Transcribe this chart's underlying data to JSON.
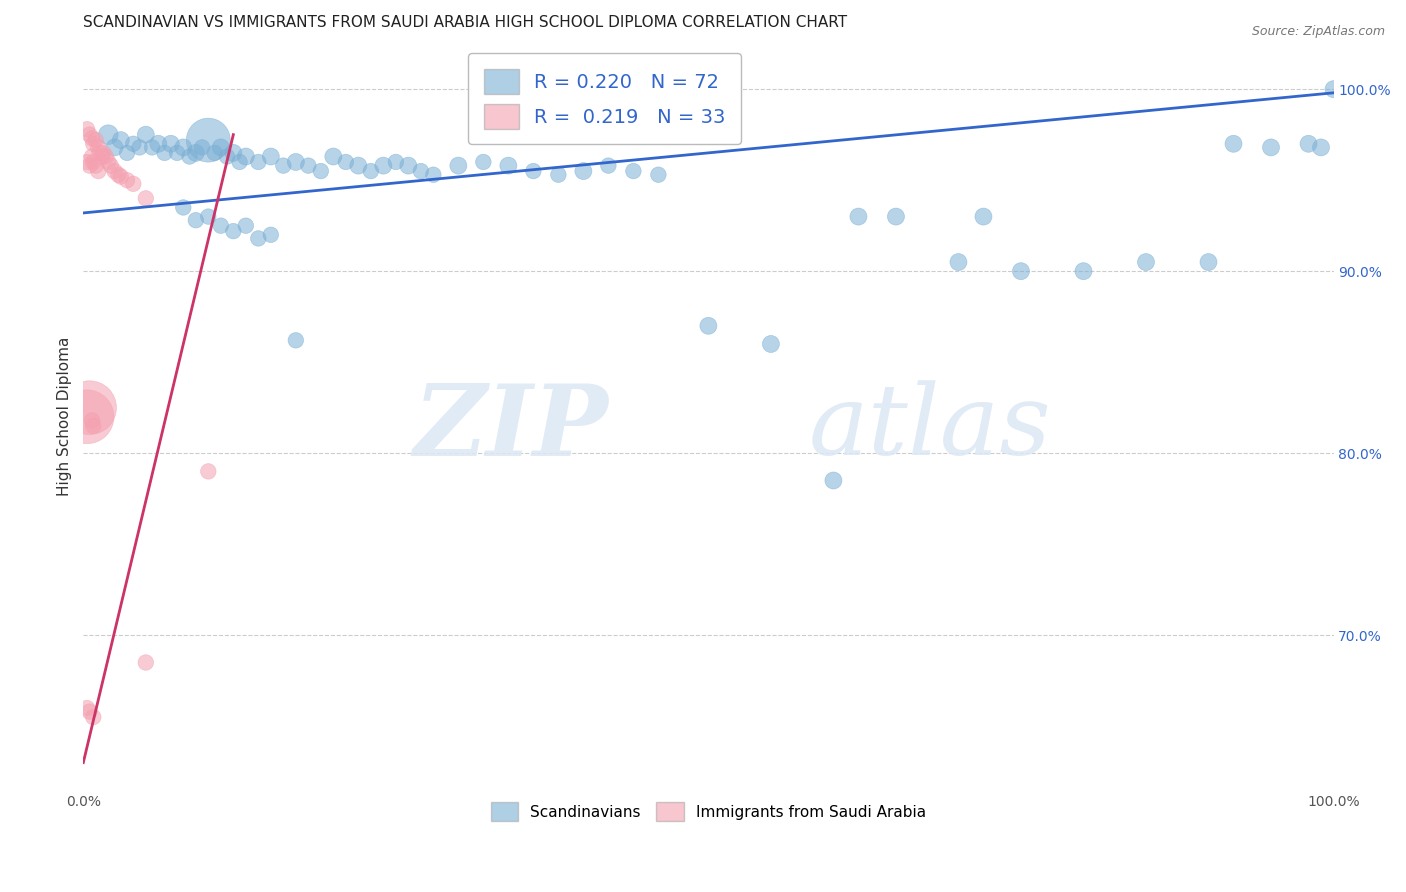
{
  "title": "SCANDINAVIAN VS IMMIGRANTS FROM SAUDI ARABIA HIGH SCHOOL DIPLOMA CORRELATION CHART",
  "source": "Source: ZipAtlas.com",
  "ylabel": "High School Diploma",
  "x_min": 0.0,
  "x_max": 1.0,
  "y_min": 0.615,
  "y_max": 1.025,
  "y_ticks": [
    0.7,
    0.8,
    0.9,
    1.0
  ],
  "y_tick_labels": [
    "70.0%",
    "80.0%",
    "90.0%",
    "100.0%"
  ],
  "x_ticks": [
    0.0,
    1.0
  ],
  "x_tick_labels": [
    "0.0%",
    "100.0%"
  ],
  "grid_color": "#cccccc",
  "background_color": "#ffffff",
  "scandinavian_color": "#7bafd4",
  "saudi_color": "#f4a0b0",
  "trend_blue": "#3366cc",
  "trend_pink": "#cc3366",
  "legend_R_blue": "0.220",
  "legend_N_blue": "72",
  "legend_R_pink": "0.219",
  "legend_N_pink": "33",
  "watermark_zip": "ZIP",
  "watermark_atlas": "atlas",
  "sc_x": [
    0.02,
    0.025,
    0.03,
    0.035,
    0.04,
    0.045,
    0.05,
    0.055,
    0.06,
    0.065,
    0.07,
    0.075,
    0.08,
    0.085,
    0.09,
    0.095,
    0.1,
    0.105,
    0.11,
    0.115,
    0.12,
    0.125,
    0.13,
    0.14,
    0.15,
    0.16,
    0.17,
    0.18,
    0.19,
    0.2,
    0.21,
    0.22,
    0.23,
    0.24,
    0.25,
    0.26,
    0.27,
    0.28,
    0.3,
    0.32,
    0.34,
    0.36,
    0.38,
    0.4,
    0.42,
    0.44,
    0.46,
    0.5,
    0.55,
    0.6,
    0.62,
    0.65,
    0.7,
    0.72,
    0.75,
    0.8,
    0.85,
    0.9,
    0.92,
    0.95,
    0.98,
    0.99,
    1.0,
    0.08,
    0.09,
    0.1,
    0.11,
    0.12,
    0.13,
    0.14,
    0.15,
    0.17
  ],
  "sc_y": [
    0.975,
    0.968,
    0.972,
    0.965,
    0.97,
    0.968,
    0.975,
    0.968,
    0.97,
    0.965,
    0.97,
    0.965,
    0.968,
    0.963,
    0.965,
    0.968,
    0.972,
    0.965,
    0.968,
    0.963,
    0.965,
    0.96,
    0.963,
    0.96,
    0.963,
    0.958,
    0.96,
    0.958,
    0.955,
    0.963,
    0.96,
    0.958,
    0.955,
    0.958,
    0.96,
    0.958,
    0.955,
    0.953,
    0.958,
    0.96,
    0.958,
    0.955,
    0.953,
    0.955,
    0.958,
    0.955,
    0.953,
    0.87,
    0.86,
    0.785,
    0.93,
    0.93,
    0.905,
    0.93,
    0.9,
    0.9,
    0.905,
    0.905,
    0.97,
    0.968,
    0.97,
    0.968,
    1.0,
    0.935,
    0.928,
    0.93,
    0.925,
    0.922,
    0.925,
    0.918,
    0.92,
    0.862
  ],
  "sc_s": [
    80,
    60,
    60,
    50,
    50,
    50,
    60,
    50,
    60,
    50,
    60,
    50,
    60,
    50,
    60,
    50,
    400,
    50,
    60,
    50,
    60,
    50,
    60,
    50,
    60,
    50,
    60,
    50,
    50,
    60,
    50,
    60,
    50,
    60,
    50,
    60,
    50,
    50,
    60,
    50,
    60,
    50,
    50,
    60,
    50,
    50,
    50,
    60,
    60,
    60,
    60,
    60,
    60,
    60,
    60,
    60,
    60,
    60,
    60,
    60,
    60,
    60,
    60,
    50,
    50,
    50,
    50,
    50,
    50,
    50,
    50,
    50
  ],
  "sa_x": [
    0.003,
    0.005,
    0.007,
    0.008,
    0.01,
    0.012,
    0.013,
    0.015,
    0.016,
    0.018,
    0.02,
    0.022,
    0.025,
    0.028,
    0.03,
    0.035,
    0.04,
    0.05,
    0.003,
    0.005,
    0.007,
    0.008,
    0.003,
    0.005,
    0.008,
    0.05,
    0.1,
    0.003,
    0.005,
    0.007,
    0.008,
    0.01,
    0.012
  ],
  "sa_y": [
    0.978,
    0.975,
    0.973,
    0.97,
    0.972,
    0.968,
    0.965,
    0.963,
    0.965,
    0.963,
    0.96,
    0.958,
    0.955,
    0.953,
    0.952,
    0.95,
    0.948,
    0.94,
    0.82,
    0.825,
    0.818,
    0.815,
    0.66,
    0.658,
    0.655,
    0.685,
    0.79,
    0.96,
    0.958,
    0.963,
    0.96,
    0.958,
    0.955
  ],
  "sa_s": [
    50,
    50,
    50,
    50,
    50,
    50,
    50,
    50,
    50,
    50,
    50,
    50,
    50,
    50,
    50,
    50,
    50,
    50,
    600,
    600,
    50,
    50,
    50,
    50,
    50,
    50,
    50,
    50,
    50,
    50,
    50,
    50,
    50
  ],
  "blue_trend_x": [
    0.0,
    1.0
  ],
  "blue_trend_y": [
    0.932,
    0.998
  ],
  "pink_trend_x": [
    0.0,
    0.12
  ],
  "pink_trend_y": [
    0.63,
    0.975
  ]
}
